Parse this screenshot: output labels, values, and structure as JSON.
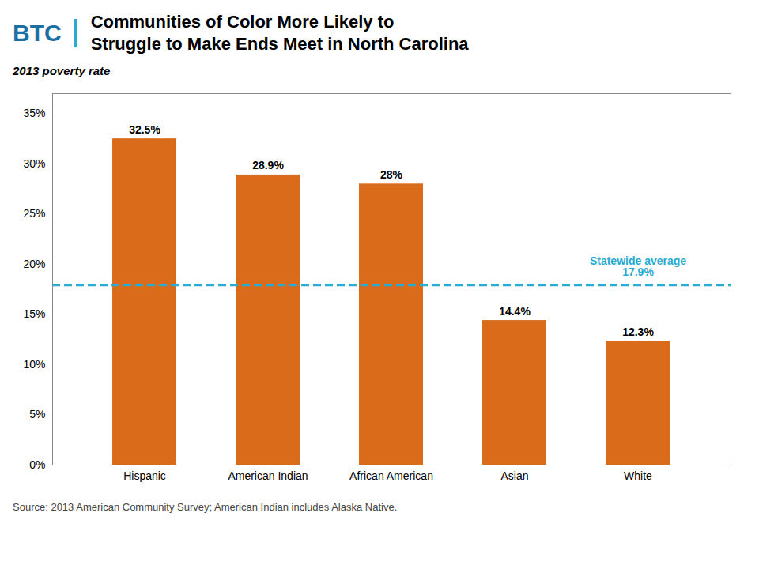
{
  "chart_data": {
    "type": "bar",
    "title": "Communities of Color More Likely to\nStruggle to Make Ends Meet in North Carolina",
    "subtitle": "2013 poverty rate",
    "caption": "Source: 2013 American Community Survey; American Indian includes Alaska Native.",
    "logo_text": "BTC",
    "categories": [
      "Hispanic",
      "American Indian",
      "African American",
      "Asian",
      "White"
    ],
    "values": [
      32.5,
      28.9,
      28.0,
      14.4,
      12.3
    ],
    "value_labels": [
      "32.5%",
      "28.9%",
      "28%",
      "14.4%",
      "12.3%"
    ],
    "data_labels": true,
    "color": "#D96B1A",
    "ylim": [
      0,
      37
    ],
    "yticks": [
      {
        "value": 0,
        "label": "0%"
      },
      {
        "value": 5,
        "label": "5%"
      },
      {
        "value": 10,
        "label": "10%"
      },
      {
        "value": 15,
        "label": "15%"
      },
      {
        "value": 20,
        "label": "20%"
      },
      {
        "value": 25,
        "label": "25%"
      },
      {
        "value": 30,
        "label": "30%"
      },
      {
        "value": 35,
        "label": "35%"
      }
    ],
    "grid": false,
    "reference_line": {
      "value": 17.9,
      "label": "Statewide average",
      "value_label": "17.9%",
      "color": "#29ABD4"
    }
  }
}
